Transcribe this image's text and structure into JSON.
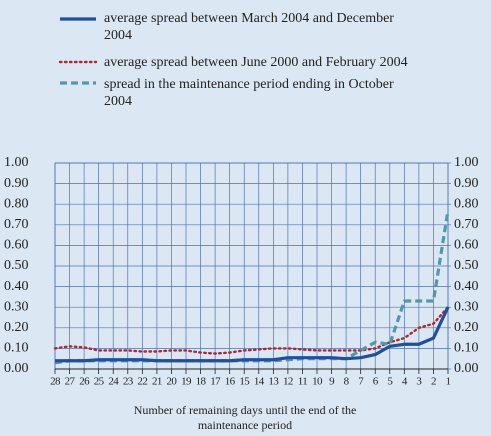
{
  "chart_data": {
    "type": "line",
    "categories": [
      "28",
      "27",
      "26",
      "25",
      "24",
      "23",
      "22",
      "21",
      "20",
      "19",
      "18",
      "17",
      "16",
      "15",
      "14",
      "13",
      "12",
      "11",
      "10",
      "9",
      "8",
      "7",
      "6",
      "5",
      "4",
      "3",
      "2",
      "1"
    ],
    "x_label": "Number of remaining days until the end of the maintenance period",
    "series": [
      {
        "name": "average spread between March 2004 and December 2004",
        "color": "#1f4f9e",
        "line_style": "solid",
        "values": [
          0.04,
          0.04,
          0.04,
          0.045,
          0.045,
          0.045,
          0.045,
          0.04,
          0.04,
          0.04,
          0.04,
          0.04,
          0.04,
          0.045,
          0.045,
          0.045,
          0.055,
          0.055,
          0.055,
          0.055,
          0.05,
          0.055,
          0.07,
          0.11,
          0.12,
          0.12,
          0.15,
          0.3
        ]
      },
      {
        "name": "average spread between June 2000 and February 2004",
        "color": "#b0282c",
        "line_style": "dotted",
        "values": [
          0.1,
          0.11,
          0.105,
          0.09,
          0.09,
          0.09,
          0.085,
          0.085,
          0.09,
          0.09,
          0.08,
          0.075,
          0.08,
          0.09,
          0.095,
          0.1,
          0.1,
          0.095,
          0.09,
          0.09,
          0.09,
          0.09,
          0.1,
          0.13,
          0.15,
          0.2,
          0.22,
          0.3
        ]
      },
      {
        "name": "spread in the maintenance period ending in October 2004",
        "color": "#4f9aa6",
        "line_style": "dashed",
        "values": [
          0.03,
          0.04,
          0.04,
          0.04,
          0.04,
          0.04,
          0.04,
          0.04,
          0.04,
          0.04,
          0.04,
          0.04,
          0.04,
          0.04,
          0.04,
          0.04,
          0.045,
          0.05,
          0.05,
          0.05,
          0.05,
          0.09,
          0.13,
          0.12,
          0.33,
          0.33,
          0.33,
          0.77
        ]
      }
    ],
    "ylim": [
      0,
      1
    ],
    "yticks": [
      {
        "value": 0,
        "label": "0.00"
      },
      {
        "value": 0.1,
        "label": "0.10"
      },
      {
        "value": 0.2,
        "label": "0.20"
      },
      {
        "value": 0.3,
        "label": "0.30"
      },
      {
        "value": 0.4,
        "label": "0.40"
      },
      {
        "value": 0.5,
        "label": "0.50"
      },
      {
        "value": 0.6,
        "label": "0.60"
      },
      {
        "value": 0.7,
        "label": "0.70"
      },
      {
        "value": 0.8,
        "label": "0.80"
      },
      {
        "value": 0.9,
        "label": "0.90"
      },
      {
        "value": 1,
        "label": "1.00"
      }
    ],
    "y2lim": [
      0,
      1
    ],
    "y2ticks": [
      {
        "value": 0,
        "label": "0.00"
      },
      {
        "value": 0.1,
        "label": "0.10"
      },
      {
        "value": 0.2,
        "label": "0.20"
      },
      {
        "value": 0.3,
        "label": "0.30"
      },
      {
        "value": 0.4,
        "label": "0.40"
      },
      {
        "value": 0.5,
        "label": "0.50"
      },
      {
        "value": 0.6,
        "label": "0.60"
      },
      {
        "value": 0.7,
        "label": "0.70"
      },
      {
        "value": 0.8,
        "label": "0.80"
      },
      {
        "value": 0.9,
        "label": "0.90"
      },
      {
        "value": 1,
        "label": "1.00"
      }
    ],
    "grid": true
  }
}
